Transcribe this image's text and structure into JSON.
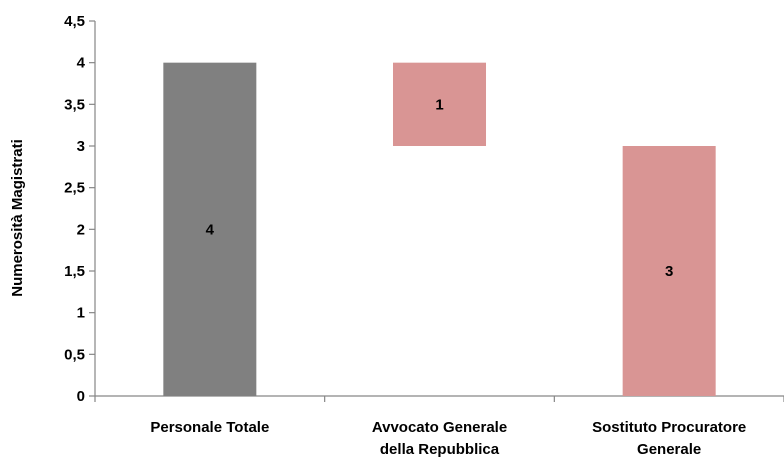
{
  "chart_data": {
    "type": "bar",
    "subtype": "waterfall",
    "ylabel": "Numerosità Magistrati",
    "ylim": [
      0,
      4.5
    ],
    "y_tick_labels": [
      "0",
      "0,5",
      "1",
      "1,5",
      "2",
      "2,5",
      "3",
      "3,5",
      "4",
      "4,5"
    ],
    "y_ticks": [
      0,
      0.5,
      1,
      1.5,
      2,
      2.5,
      3,
      3.5,
      4,
      4.5
    ],
    "grid": false,
    "bars": [
      {
        "category": [
          "Personale Totale"
        ],
        "base": 0,
        "top": 4,
        "value": 4,
        "label": "4",
        "color": "#808080"
      },
      {
        "category": [
          "Avvocato Generale",
          "della Repubblica"
        ],
        "base": 3,
        "top": 4,
        "value": 1,
        "label": "1",
        "color": "#d99594"
      },
      {
        "category": [
          "Sostituto Procuratore",
          "Generale"
        ],
        "base": 0,
        "top": 3,
        "value": 3,
        "label": "3",
        "color": "#d99594"
      }
    ]
  }
}
